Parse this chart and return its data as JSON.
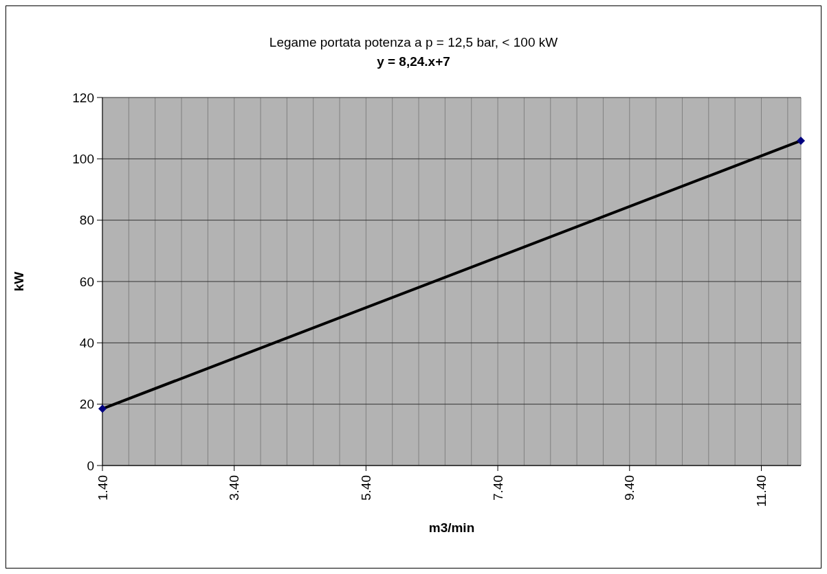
{
  "chart_data": {
    "type": "line",
    "title": "Legame portata potenza a p = 12,5 bar, < 100 kW",
    "subtitle": "y = 8,24.x+7",
    "xlabel": "m3/min",
    "ylabel": "kW",
    "x": [
      1.4,
      12
    ],
    "series": [
      {
        "color": "#000000",
        "colors": [
          "#000080",
          "#000080"
        ],
        "values": [
          18.5,
          105.9
        ]
      }
    ],
    "xlim": [
      1.4,
      12
    ],
    "xticks": [
      {
        "value": 1.4,
        "label": "1.40"
      },
      {
        "value": 1.8,
        "label": null
      },
      {
        "value": 2.2,
        "label": null
      },
      {
        "value": 2.6,
        "label": null
      },
      {
        "value": 3.0,
        "label": null
      },
      {
        "value": 3.4,
        "label": "3.40"
      },
      {
        "value": 3.8,
        "label": null
      },
      {
        "value": 4.2,
        "label": null
      },
      {
        "value": 4.6,
        "label": null
      },
      {
        "value": 5.0,
        "label": null
      },
      {
        "value": 5.4,
        "label": "5.40"
      },
      {
        "value": 5.8,
        "label": null
      },
      {
        "value": 6.2,
        "label": null
      },
      {
        "value": 6.6,
        "label": null
      },
      {
        "value": 7.0,
        "label": null
      },
      {
        "value": 7.4,
        "label": "7.40"
      },
      {
        "value": 7.8,
        "label": null
      },
      {
        "value": 8.2,
        "label": null
      },
      {
        "value": 8.6,
        "label": null
      },
      {
        "value": 9.0,
        "label": null
      },
      {
        "value": 9.4,
        "label": "9.40"
      },
      {
        "value": 9.8,
        "label": null
      },
      {
        "value": 10.2,
        "label": null
      },
      {
        "value": 10.6,
        "label": null
      },
      {
        "value": 11.0,
        "label": null
      },
      {
        "value": 11.4,
        "label": "11.40"
      },
      {
        "value": 11.8,
        "label": null
      }
    ],
    "ylim": [
      0,
      120
    ],
    "yticks": [
      0,
      20,
      40,
      60,
      80,
      100,
      120
    ],
    "grid": true,
    "marker": "diamond",
    "line_style": "solid"
  }
}
